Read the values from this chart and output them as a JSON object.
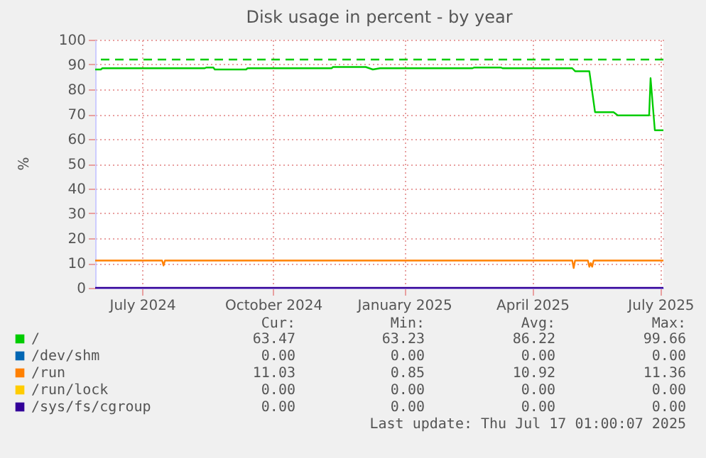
{
  "chart_data": {
    "type": "line",
    "title": "Disk usage in percent - by year",
    "ylabel": "%",
    "xlim": [
      "2024-06-13",
      "2025-07-17"
    ],
    "xticks": [
      {
        "value": "2024-07-16",
        "label": "July 2024"
      },
      {
        "value": "2024-10-16",
        "label": "October 2024"
      },
      {
        "value": "2025-01-16",
        "label": "January 2025"
      },
      {
        "value": "2025-04-16",
        "label": "April 2025"
      },
      {
        "value": "2025-07-15",
        "label": "July 2025"
      }
    ],
    "ylim": [
      0,
      100
    ],
    "yticks": [
      0,
      10,
      20,
      30,
      40,
      50,
      60,
      70,
      80,
      90,
      100
    ],
    "grid": true,
    "legend": "bottom",
    "marker": "none",
    "line_style": "solid",
    "series": [
      {
        "name": "/",
        "color": "#00cc00",
        "x": [
          "2024-06-13",
          "2024-06-17",
          "2024-06-18",
          "2024-08-29",
          "2024-08-30",
          "2024-09-04",
          "2024-09-05",
          "2024-09-27",
          "2024-09-28",
          "2024-11-26",
          "2024-11-27",
          "2024-12-20",
          "2024-12-25",
          "2024-12-30",
          "2025-03-05",
          "2025-03-06",
          "2025-03-25",
          "2025-03-26",
          "2025-05-14",
          "2025-05-16",
          "2025-05-26",
          "2025-05-30",
          "2025-06-12",
          "2025-06-15",
          "2025-07-07",
          "2025-07-08",
          "2025-07-11",
          "2025-07-17"
        ],
        "values": [
          88,
          88,
          88.5,
          88.5,
          88.8,
          88.8,
          88,
          88,
          88.5,
          88.5,
          89,
          89,
          88,
          88.5,
          88.5,
          88.8,
          88.8,
          88.5,
          88.5,
          87.3,
          87.3,
          70.8,
          70.8,
          69.5,
          69.5,
          84.5,
          63.5,
          63.5
        ]
      },
      {
        "name": "/dev/shm",
        "color": "#0066b3",
        "values": [
          null,
          null
        ]
      },
      {
        "name": "/run",
        "color": "#ff8000",
        "x": [
          "2024-06-13",
          "2024-07-30",
          "2024-07-31",
          "2024-08-01",
          "2025-05-14",
          "2025-05-15",
          "2025-05-16",
          "2025-05-25",
          "2025-05-26",
          "2025-05-27",
          "2025-05-28",
          "2025-05-29",
          "2025-07-17"
        ],
        "values": [
          11,
          11,
          9,
          11,
          11,
          8,
          11,
          11,
          8.5,
          10,
          8.5,
          11,
          11
        ]
      },
      {
        "name": "/run/lock",
        "color": "#ffcc00",
        "values": [
          null,
          null
        ]
      },
      {
        "name": "/sys/fs/cgroup",
        "color": "#330099",
        "x": [
          "2024-06-13",
          "2025-07-17"
        ],
        "values": [
          0,
          0
        ]
      }
    ],
    "ref_lines": [
      {
        "axis": "y",
        "value": 92,
        "color": "#00cc00",
        "line_style": "dashed"
      }
    ],
    "annotations": [
      "Cur:",
      "Min:",
      "Avg:",
      "Max:",
      "63.47",
      "63.23",
      "86.22",
      "99.66",
      "0.00",
      "0.00",
      "0.00",
      "0.00",
      "11.03",
      "0.85",
      "10.92",
      "11.36",
      "0.00",
      "0.00",
      "0.00",
      "0.00",
      "0.00",
      "0.00",
      "0.00",
      "0.00",
      "Last update: Thu Jul 17 01:00:07 2025"
    ]
  }
}
